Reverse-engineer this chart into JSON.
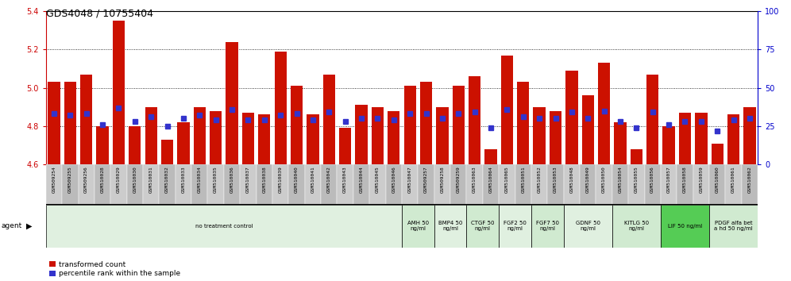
{
  "title": "GDS4048 / 10755404",
  "samples": [
    "GSM509254",
    "GSM509255",
    "GSM509256",
    "GSM510028",
    "GSM510029",
    "GSM510030",
    "GSM510031",
    "GSM510032",
    "GSM510033",
    "GSM510034",
    "GSM510035",
    "GSM510036",
    "GSM510037",
    "GSM510038",
    "GSM510039",
    "GSM510040",
    "GSM510041",
    "GSM510042",
    "GSM510043",
    "GSM510044",
    "GSM510045",
    "GSM510046",
    "GSM510047",
    "GSM509257",
    "GSM509258",
    "GSM509259",
    "GSM510063",
    "GSM510064",
    "GSM510065",
    "GSM510051",
    "GSM510052",
    "GSM510053",
    "GSM510048",
    "GSM510049",
    "GSM510050",
    "GSM510054",
    "GSM510055",
    "GSM510056",
    "GSM510057",
    "GSM510058",
    "GSM510059",
    "GSM510060",
    "GSM510061",
    "GSM510062"
  ],
  "bar_values": [
    5.03,
    5.03,
    5.07,
    4.8,
    5.35,
    4.8,
    4.9,
    4.73,
    4.82,
    4.9,
    4.88,
    5.24,
    4.87,
    4.86,
    5.19,
    5.01,
    4.86,
    5.07,
    4.79,
    4.91,
    4.9,
    4.88,
    5.01,
    5.03,
    4.9,
    5.01,
    5.06,
    4.68,
    5.17,
    5.03,
    4.9,
    4.88,
    5.09,
    4.96,
    5.13,
    4.82,
    4.68,
    5.07,
    4.8,
    4.87,
    4.87,
    4.71,
    4.86,
    4.9
  ],
  "percentile_values": [
    33,
    32,
    33,
    26,
    37,
    28,
    31,
    25,
    30,
    32,
    29,
    36,
    29,
    29,
    32,
    33,
    29,
    34,
    28,
    30,
    30,
    29,
    33,
    33,
    30,
    33,
    34,
    24,
    36,
    31,
    30,
    30,
    34,
    30,
    35,
    28,
    24,
    34,
    26,
    28,
    28,
    22,
    29,
    30
  ],
  "ylim_left": [
    4.6,
    5.4
  ],
  "ylim_right": [
    0,
    100
  ],
  "yticks_left": [
    4.6,
    4.8,
    5.0,
    5.2,
    5.4
  ],
  "yticks_right": [
    0,
    25,
    50,
    75,
    100
  ],
  "bar_color": "#cc1100",
  "dot_color": "#3333cc",
  "bar_bottom": 4.6,
  "agent_groups": [
    {
      "label": "no treatment control",
      "start": 0,
      "end": 22,
      "color": "#e0f0e0"
    },
    {
      "label": "AMH 50\nng/ml",
      "start": 22,
      "end": 24,
      "color": "#d0ead0"
    },
    {
      "label": "BMP4 50\nng/ml",
      "start": 24,
      "end": 26,
      "color": "#e0f0e0"
    },
    {
      "label": "CTGF 50\nng/ml",
      "start": 26,
      "end": 28,
      "color": "#d0ead0"
    },
    {
      "label": "FGF2 50\nng/ml",
      "start": 28,
      "end": 30,
      "color": "#e0f0e0"
    },
    {
      "label": "FGF7 50\nng/ml",
      "start": 30,
      "end": 32,
      "color": "#d0ead0"
    },
    {
      "label": "GDNF 50\nng/ml",
      "start": 32,
      "end": 35,
      "color": "#e0f0e0"
    },
    {
      "label": "KITLG 50\nng/ml",
      "start": 35,
      "end": 38,
      "color": "#d0ead0"
    },
    {
      "label": "LIF 50 ng/ml",
      "start": 38,
      "end": 41,
      "color": "#55cc55"
    },
    {
      "label": "PDGF alfa bet\na hd 50 ng/ml",
      "start": 41,
      "end": 44,
      "color": "#d0ead0"
    }
  ],
  "left_axis_color": "#cc0000",
  "right_axis_color": "#0000cc",
  "grid_color": "#000000",
  "label_bg_even": "#cccccc",
  "label_bg_odd": "#bbbbbb"
}
